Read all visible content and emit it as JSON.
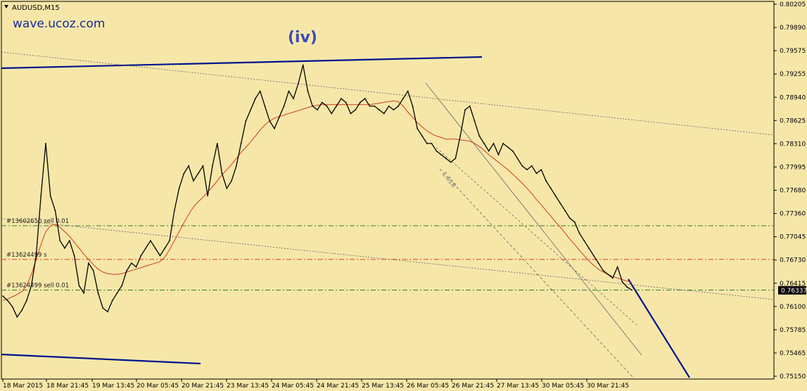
{
  "header": {
    "symbol_timeframe": "AUDUSD,M15",
    "watermark": "wave.ucoz.com"
  },
  "colors": {
    "background": "#f6e7a9",
    "price": "#000000",
    "moving_average": "#d03a1e",
    "trendline": "#00148c",
    "label_blue": "#3b49b8",
    "green_level": "#3a7b2c",
    "red_level": "#e0401e",
    "dotted": "#6c6c6c",
    "price_tag_bg": "#000000",
    "price_tag_fg": "#ffffff"
  },
  "chart_data": {
    "type": "line",
    "title": "AUDUSD,M15",
    "yaxis": {
      "min": 0.7515,
      "max": 0.802,
      "ticks": [
        "0.80205",
        "0.79890",
        "0.79575",
        "0.79255",
        "0.78940",
        "0.78625",
        "0.78310",
        "0.77995",
        "0.77680",
        "0.77360",
        "0.77045",
        "0.76730",
        "0.76415",
        "0.76100",
        "0.75785",
        "0.75465",
        "0.75150"
      ]
    },
    "xaxis": {
      "ticks": [
        "18 Mar 2015",
        "18 Mar 21:45",
        "19 Mar 13:45",
        "20 Mar 05:45",
        "20 Mar 21:45",
        "23 Mar 13:45",
        "24 Mar 05:45",
        "24 Mar 21:45",
        "25 Mar 13:45",
        "26 Mar 05:45",
        "26 Mar 21:45",
        "27 Mar 13:45",
        "30 Mar 05:45",
        "30 Mar 21:45"
      ]
    },
    "current_price": "0.76337",
    "wave_label": "(iv)",
    "fib_label": "1.618",
    "grid": false,
    "series": [
      {
        "values": [
          0.7626,
          0.762,
          0.7612,
          0.7598,
          0.7607,
          0.762,
          0.764,
          0.768,
          0.776,
          0.783,
          0.776,
          0.774,
          0.77,
          0.769,
          0.77,
          0.768,
          0.764,
          0.763,
          0.767,
          0.766,
          0.763,
          0.761,
          0.7605,
          0.762,
          0.763,
          0.764,
          0.766,
          0.767,
          0.7665,
          0.768,
          0.769,
          0.77,
          0.769,
          0.768,
          0.769,
          0.77,
          0.774,
          0.777,
          0.779,
          0.78,
          0.778,
          0.779,
          0.78,
          0.776,
          0.78,
          0.783,
          0.779,
          0.777,
          0.778,
          0.78,
          0.783,
          0.786,
          0.7875,
          0.789,
          0.79,
          0.788,
          0.786,
          0.785,
          0.7865,
          0.788,
          0.79,
          0.789,
          0.791,
          0.7935,
          0.79,
          0.788,
          0.7875,
          0.7885,
          0.788,
          0.787,
          0.788,
          0.789,
          0.7885,
          0.787,
          0.7875,
          0.7885,
          0.789,
          0.788,
          0.788,
          0.7875,
          0.787,
          0.788,
          0.7875,
          0.788,
          0.789,
          0.79,
          0.788,
          0.785,
          0.784,
          0.783,
          0.783,
          0.782,
          0.7815,
          0.781,
          0.7805,
          0.781,
          0.784,
          0.7875,
          0.788,
          0.786,
          0.784,
          0.783,
          0.782,
          0.783,
          0.7815,
          0.783,
          0.7825,
          0.782,
          0.781,
          0.78,
          0.7795,
          0.78,
          0.779,
          0.7795,
          0.778,
          0.777,
          0.776,
          0.775,
          0.774,
          0.773,
          0.7725,
          0.771,
          0.77,
          0.769,
          0.768,
          0.767,
          0.766,
          0.7655,
          0.765,
          0.7665,
          0.7645,
          0.7638,
          0.7634
        ],
        "moving_average": [
          0.762,
          0.7622,
          0.7625,
          0.7628,
          0.7632,
          0.764,
          0.7655,
          0.7675,
          0.7695,
          0.7712,
          0.772,
          0.7722,
          0.7718,
          0.7712,
          0.7706,
          0.7698,
          0.769,
          0.7682,
          0.7675,
          0.7668,
          0.7662,
          0.7658,
          0.7656,
          0.7655,
          0.7655,
          0.7656,
          0.7658,
          0.766,
          0.7662,
          0.7664,
          0.7666,
          0.7668,
          0.767,
          0.7672,
          0.7678,
          0.7688,
          0.77,
          0.7712,
          0.7724,
          0.7735,
          0.7745,
          0.7752,
          0.7758,
          0.7765,
          0.7772,
          0.778,
          0.7788,
          0.7795,
          0.7802,
          0.781,
          0.7818,
          0.7825,
          0.7832,
          0.784,
          0.7848,
          0.7855,
          0.786,
          0.7864,
          0.7866,
          0.7868,
          0.787,
          0.7872,
          0.7874,
          0.7876,
          0.7878,
          0.788,
          0.7881,
          0.7882,
          0.7882,
          0.7882,
          0.7882,
          0.7882,
          0.7882,
          0.7882,
          0.7882,
          0.7882,
          0.7882,
          0.7882,
          0.7883,
          0.7884,
          0.7885,
          0.7886,
          0.7887,
          0.7886,
          0.788,
          0.7872,
          0.7865,
          0.7858,
          0.7852,
          0.7847,
          0.7843,
          0.784,
          0.7838,
          0.7836,
          0.7836,
          0.7836,
          0.7835,
          0.7834,
          0.7833,
          0.783,
          0.7826,
          0.7821,
          0.7815,
          0.781,
          0.7805,
          0.78,
          0.7795,
          0.7789,
          0.7783,
          0.7777,
          0.777,
          0.7763,
          0.7755,
          0.7748,
          0.774,
          0.7733,
          0.7725,
          0.7718,
          0.771,
          0.7702,
          0.7695,
          0.7687,
          0.768,
          0.7673,
          0.7667,
          0.7662,
          0.7658,
          0.7655,
          0.7652,
          0.765,
          0.7648,
          0.7646,
          0.7644
        ]
      }
    ]
  },
  "levels": [
    {
      "label": "#13602650 sell 0.01",
      "price": 0.772,
      "style": "green"
    },
    {
      "label": "#13624499 s",
      "price": 0.7675,
      "style": "red"
    },
    {
      "label": "#13624499 sell 0.01",
      "price": 0.7634,
      "style": "green"
    }
  ]
}
